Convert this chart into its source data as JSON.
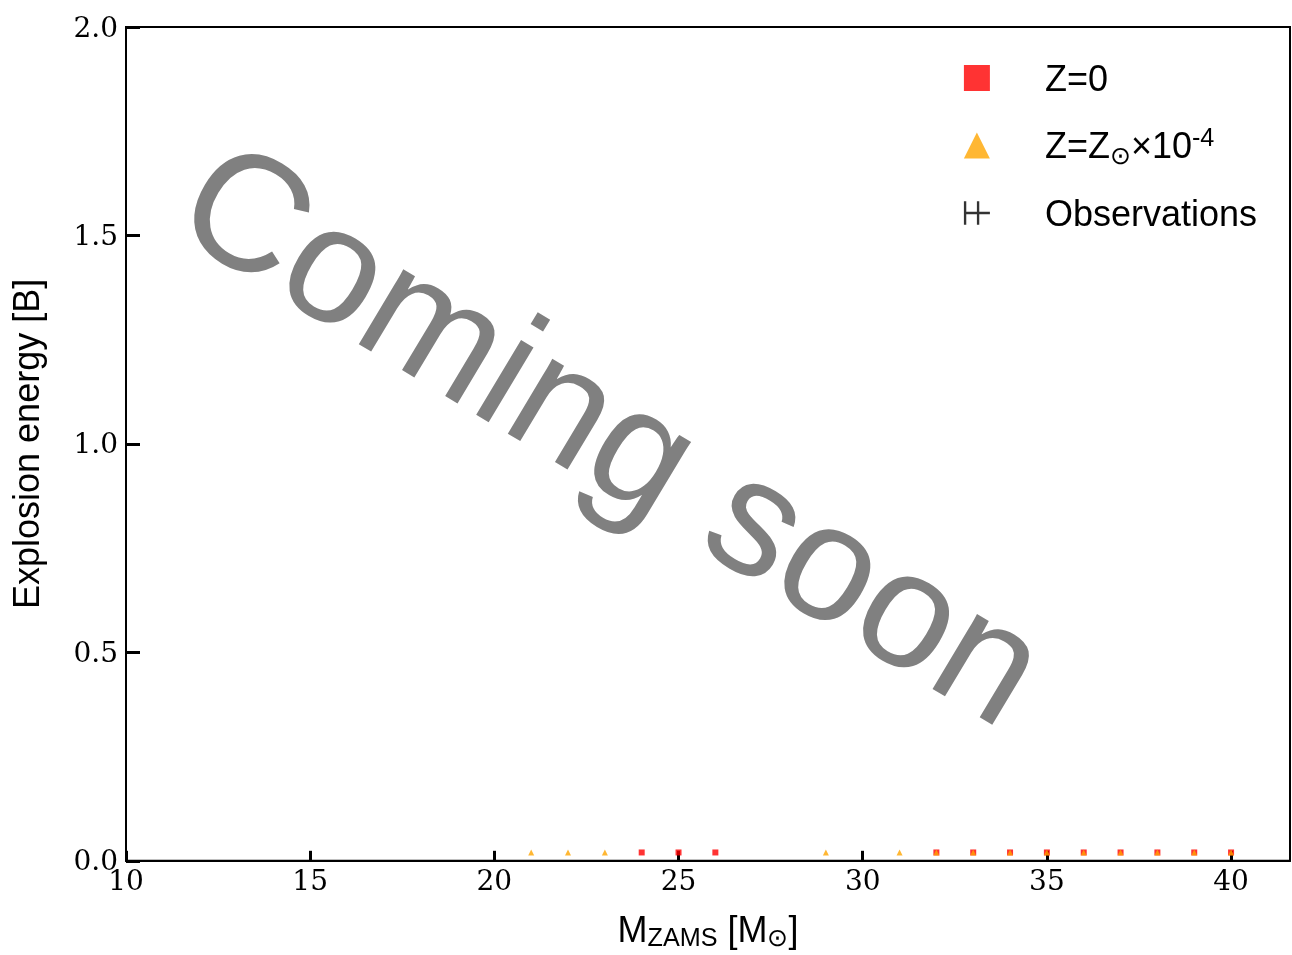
{
  "chart_data": {
    "type": "scatter",
    "xlabel": "M$_{ZAMS}$ [M$_{⊙}$]",
    "ylabel": "Explosion energy [B]",
    "xlim": [
      10,
      41.6
    ],
    "xticks": [
      10,
      15,
      20,
      25,
      30,
      35,
      40
    ],
    "ylim": [
      0,
      2
    ],
    "yticks": [
      {
        "value": 0,
        "label": "0.0"
      },
      {
        "value": 0.5,
        "label": "0.5"
      },
      {
        "value": 1,
        "label": "1.0"
      },
      {
        "value": 1.5,
        "label": "1.5"
      },
      {
        "value": 2,
        "label": "2.0"
      }
    ],
    "grid": false,
    "legend": "top right",
    "annotations": [
      "Coming soon"
    ],
    "series": [
      {
        "name": "Z=0",
        "color": "#ff0000",
        "marker": "square",
        "x": [
          24,
          25,
          26,
          32,
          33,
          34,
          35,
          36,
          37,
          38,
          39,
          40
        ],
        "values": [
          0.02,
          0.02,
          0.02,
          0.02,
          0.02,
          0.02,
          0.02,
          0.02,
          0.02,
          0.02,
          0.02,
          0.02
        ]
      },
      {
        "name": "Z=Z$_{⊙}$×10$^{-4}$",
        "color": "#ffa500",
        "marker": "triangle",
        "x": [
          21,
          22,
          23,
          29,
          31,
          32,
          33,
          34,
          35,
          36,
          37,
          38,
          39,
          40
        ],
        "values": [
          0.02,
          0.02,
          0.02,
          0.02,
          0.02,
          0.02,
          0.02,
          0.02,
          0.02,
          0.02,
          0.02,
          0.02,
          0.02,
          0.02
        ]
      },
      {
        "name": "Observations",
        "color": "#000000",
        "marker": "cross"
      }
    ]
  }
}
